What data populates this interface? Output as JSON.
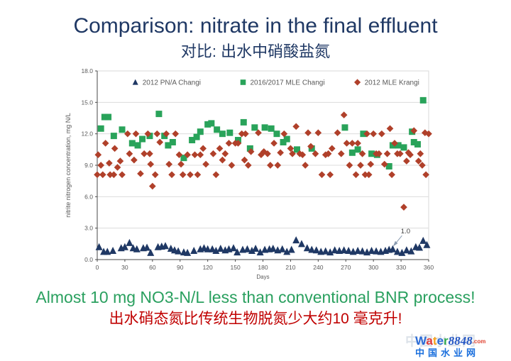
{
  "slide": {
    "title": "Comparison: nitrate in the final effluent",
    "subtitle": "对比: 出水中硝酸盐氮",
    "conclusion_en": "Almost 10 mg NO3-N/L less than conventional BNR process!",
    "conclusion_zh": "出水硝态氮比传统生物脱氮少大约10 毫克升!"
  },
  "colors": {
    "title": "#1f3864",
    "subtitle": "#1f3864",
    "conclusion_en": "#2aa05f",
    "conclusion_zh": "#c00000",
    "axis_text": "#595959",
    "axis_line": "#4a4a4a",
    "grid": "#dcdcdc",
    "plot_border": "#d9d9d9",
    "annotation_text": "#404040",
    "annotation_arrow": "#8a9bb0"
  },
  "logo": {
    "watermark": "中国水业网",
    "letters": [
      {
        "ch": "W",
        "color": "#2b6bd6"
      },
      {
        "ch": "a",
        "color": "#e03a3a"
      },
      {
        "ch": "t",
        "color": "#f6a21d"
      },
      {
        "ch": "e",
        "color": "#2b6bd6"
      },
      {
        "ch": "r",
        "color": "#2fa84f"
      }
    ],
    "number": "8848",
    "number_color": "#2456c4",
    "domain": ".com",
    "domain_color": "#e0412e",
    "chinese": "中国水业网",
    "chinese_color": "#1a6fdd"
  },
  "chart_data": {
    "type": "scatter",
    "title": "",
    "xlabel": "Days",
    "ylabel": "nitrite nitrogen concentration, mg N/L",
    "xlim": [
      0,
      360
    ],
    "ylim": [
      0,
      18
    ],
    "x_ticks": [
      0,
      30,
      60,
      90,
      120,
      150,
      180,
      210,
      240,
      270,
      300,
      330,
      360
    ],
    "y_ticks": [
      0,
      3,
      6,
      9,
      12,
      15,
      18
    ],
    "y_tick_labels": [
      "0.0",
      "3.0",
      "6.0",
      "9.0",
      "12.0",
      "15.0",
      "18.0"
    ],
    "grid": "horizontal",
    "legend_position": "top-inside",
    "annotation": {
      "text": "1.0",
      "day": 321,
      "value": 1.0
    },
    "series": [
      {
        "name": "2012 PN/A Changi",
        "marker": "triangle",
        "color": "#1f3864",
        "points": [
          [
            2,
            1.2
          ],
          [
            7,
            0.75
          ],
          [
            11,
            0.75
          ],
          [
            17,
            0.85
          ],
          [
            26,
            1.1
          ],
          [
            30,
            1.2
          ],
          [
            35,
            1.6
          ],
          [
            39,
            1.1
          ],
          [
            43,
            1.0
          ],
          [
            50,
            1.1
          ],
          [
            54,
            1.15
          ],
          [
            58,
            0.65
          ],
          [
            66,
            1.2
          ],
          [
            70,
            1.25
          ],
          [
            74,
            1.3
          ],
          [
            80,
            1.05
          ],
          [
            84,
            0.9
          ],
          [
            88,
            0.8
          ],
          [
            94,
            0.7
          ],
          [
            98,
            0.65
          ],
          [
            105,
            0.85
          ],
          [
            112,
            1.0
          ],
          [
            116,
            1.1
          ],
          [
            120,
            1.0
          ],
          [
            125,
            1.0
          ],
          [
            129,
            0.85
          ],
          [
            134,
            1.05
          ],
          [
            139,
            0.9
          ],
          [
            143,
            1.0
          ],
          [
            148,
            1.1
          ],
          [
            152,
            0.7
          ],
          [
            158,
            0.95
          ],
          [
            163,
            1.0
          ],
          [
            168,
            0.85
          ],
          [
            172,
            1.05
          ],
          [
            177,
            0.7
          ],
          [
            182,
            0.95
          ],
          [
            187,
            1.0
          ],
          [
            191,
            1.05
          ],
          [
            196,
            0.9
          ],
          [
            201,
            1.0
          ],
          [
            206,
            0.75
          ],
          [
            211,
            0.95
          ],
          [
            216,
            1.85
          ],
          [
            222,
            1.5
          ],
          [
            228,
            1.1
          ],
          [
            233,
            0.95
          ],
          [
            238,
            0.9
          ],
          [
            243,
            0.75
          ],
          [
            248,
            0.8
          ],
          [
            253,
            0.7
          ],
          [
            258,
            0.9
          ],
          [
            263,
            0.85
          ],
          [
            268,
            0.9
          ],
          [
            273,
            0.85
          ],
          [
            278,
            0.75
          ],
          [
            283,
            0.85
          ],
          [
            288,
            0.8
          ],
          [
            293,
            0.7
          ],
          [
            298,
            0.85
          ],
          [
            303,
            0.8
          ],
          [
            308,
            0.75
          ],
          [
            313,
            0.85
          ],
          [
            317,
            0.95
          ],
          [
            321,
            1.0
          ],
          [
            326,
            0.75
          ],
          [
            331,
            0.65
          ],
          [
            336,
            0.9
          ],
          [
            341,
            0.8
          ],
          [
            346,
            1.2
          ],
          [
            350,
            1.15
          ],
          [
            354,
            1.8
          ],
          [
            358,
            1.4
          ]
        ]
      },
      {
        "name": "2016/2017 MLE Changi",
        "marker": "square",
        "color": "#29a35a",
        "points": [
          [
            4,
            12.5
          ],
          [
            8,
            13.6
          ],
          [
            12,
            13.6
          ],
          [
            18,
            11.8
          ],
          [
            27,
            12.4
          ],
          [
            38,
            11.1
          ],
          [
            44,
            10.9
          ],
          [
            49,
            11.5
          ],
          [
            57,
            11.8
          ],
          [
            67,
            13.9
          ],
          [
            73,
            11.8
          ],
          [
            77,
            10.9
          ],
          [
            82,
            11.2
          ],
          [
            94,
            9.7
          ],
          [
            103,
            11.4
          ],
          [
            108,
            11.7
          ],
          [
            112,
            12.2
          ],
          [
            120,
            12.9
          ],
          [
            124,
            13.0
          ],
          [
            130,
            12.4
          ],
          [
            136,
            12.0
          ],
          [
            144,
            12.1
          ],
          [
            153,
            11.4
          ],
          [
            159,
            13.1
          ],
          [
            166,
            10.6
          ],
          [
            171,
            12.6
          ],
          [
            182,
            12.6
          ],
          [
            189,
            12.5
          ],
          [
            195,
            12.0
          ],
          [
            202,
            11.2
          ],
          [
            206,
            11.5
          ],
          [
            217,
            10.5
          ],
          [
            233,
            10.6
          ],
          [
            269,
            12.6
          ],
          [
            277,
            10.2
          ],
          [
            283,
            10.5
          ],
          [
            289,
            12.0
          ],
          [
            298,
            10.1
          ],
          [
            304,
            10.0
          ],
          [
            317,
            8.9
          ],
          [
            321,
            10.9
          ],
          [
            327,
            10.9
          ],
          [
            333,
            10.7
          ],
          [
            342,
            12.2
          ],
          [
            344,
            11.2
          ],
          [
            348,
            11.0
          ],
          [
            354,
            15.2
          ]
        ]
      },
      {
        "name": "2012 MLE Krangi",
        "marker": "diamond",
        "color": "#b0402a",
        "points": [
          [
            0,
            8.1
          ],
          [
            1,
            10.0
          ],
          [
            4,
            9.0
          ],
          [
            6,
            8.1
          ],
          [
            9,
            11.1
          ],
          [
            13,
            9.2
          ],
          [
            14,
            8.1
          ],
          [
            18,
            8.1
          ],
          [
            19,
            10.6
          ],
          [
            22,
            8.8
          ],
          [
            25,
            9.4
          ],
          [
            27,
            8.1
          ],
          [
            33,
            12.0
          ],
          [
            35,
            10.1
          ],
          [
            40,
            9.5
          ],
          [
            42,
            12.0
          ],
          [
            47,
            8.2
          ],
          [
            51,
            10.1
          ],
          [
            55,
            12.0
          ],
          [
            57,
            10.1
          ],
          [
            58,
            9.1
          ],
          [
            60,
            7.0
          ],
          [
            63,
            8.1
          ],
          [
            65,
            12.0
          ],
          [
            68,
            11.2
          ],
          [
            75,
            12.0
          ],
          [
            78,
            9.1
          ],
          [
            81,
            8.1
          ],
          [
            85,
            12.0
          ],
          [
            89,
            10.0
          ],
          [
            91,
            9.1
          ],
          [
            93,
            8.1
          ],
          [
            98,
            10.0
          ],
          [
            101,
            8.1
          ],
          [
            106,
            10.0
          ],
          [
            109,
            8.1
          ],
          [
            112,
            10.0
          ],
          [
            115,
            10.6
          ],
          [
            118,
            9.1
          ],
          [
            126,
            10.1
          ],
          [
            129,
            8.1
          ],
          [
            133,
            10.6
          ],
          [
            136,
            9.5
          ],
          [
            139,
            10.1
          ],
          [
            143,
            11.1
          ],
          [
            146,
            9.0
          ],
          [
            150,
            11.1
          ],
          [
            153,
            11.1
          ],
          [
            157,
            12.0
          ],
          [
            160,
            9.5
          ],
          [
            161,
            12.0
          ],
          [
            164,
            9.0
          ],
          [
            167,
            10.3
          ],
          [
            175,
            12.1
          ],
          [
            178,
            10.0
          ],
          [
            181,
            10.3
          ],
          [
            185,
            10.1
          ],
          [
            188,
            9.0
          ],
          [
            192,
            11.1
          ],
          [
            196,
            9.0
          ],
          [
            199,
            10.2
          ],
          [
            203,
            12.0
          ],
          [
            210,
            10.6
          ],
          [
            212,
            10.1
          ],
          [
            216,
            12.7
          ],
          [
            220,
            10.1
          ],
          [
            223,
            10.0
          ],
          [
            226,
            9.0
          ],
          [
            229,
            12.1
          ],
          [
            232,
            10.8
          ],
          [
            237,
            10.1
          ],
          [
            240,
            12.1
          ],
          [
            244,
            8.1
          ],
          [
            248,
            10.0
          ],
          [
            251,
            10.1
          ],
          [
            253,
            8.1
          ],
          [
            255,
            10.6
          ],
          [
            261,
            12.1
          ],
          [
            265,
            10.1
          ],
          [
            268,
            13.8
          ],
          [
            271,
            11.1
          ],
          [
            274,
            9.0
          ],
          [
            277,
            11.1
          ],
          [
            281,
            8.1
          ],
          [
            283,
            11.1
          ],
          [
            286,
            9.0
          ],
          [
            288,
            10.1
          ],
          [
            291,
            8.1
          ],
          [
            293,
            12.0
          ],
          [
            295,
            8.1
          ],
          [
            297,
            9.1
          ],
          [
            300,
            12.0
          ],
          [
            303,
            10.1
          ],
          [
            306,
            10.1
          ],
          [
            309,
            12.0
          ],
          [
            312,
            9.1
          ],
          [
            315,
            10.1
          ],
          [
            318,
            12.5
          ],
          [
            320,
            8.1
          ],
          [
            323,
            11.1
          ],
          [
            326,
            10.1
          ],
          [
            329,
            10.1
          ],
          [
            333,
            5.0
          ],
          [
            336,
            9.4
          ],
          [
            338,
            10.2
          ],
          [
            340,
            10.0
          ],
          [
            344,
            12.3
          ],
          [
            349,
            9.4
          ],
          [
            351,
            10.1
          ],
          [
            353,
            9.0
          ],
          [
            356,
            12.1
          ],
          [
            357,
            8.1
          ],
          [
            360,
            12.0
          ]
        ]
      }
    ]
  }
}
